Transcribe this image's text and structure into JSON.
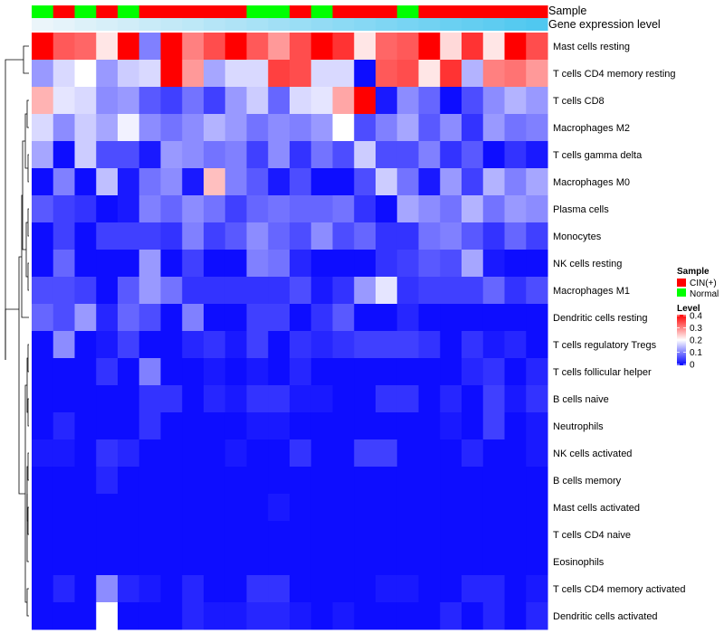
{
  "chart_data": {
    "type": "heatmap",
    "title": "",
    "annotation_titles": {
      "sample": "Sample",
      "expression": "Gene expression level"
    },
    "sample_groups": [
      "N",
      "C",
      "N",
      "C",
      "N",
      "C",
      "C",
      "C",
      "C",
      "C",
      "N",
      "N",
      "C",
      "N",
      "C",
      "C",
      "C",
      "N",
      "C",
      "C",
      "C",
      "C",
      "C",
      "C"
    ],
    "sample_colors": {
      "C": "#ff0000",
      "N": "#00ff00"
    },
    "expression_annotation": [
      0.0,
      0.04,
      0.09,
      0.13,
      0.17,
      0.22,
      0.26,
      0.3,
      0.35,
      0.39,
      0.43,
      0.48,
      0.52,
      0.57,
      0.61,
      0.65,
      0.7,
      0.74,
      0.78,
      0.83,
      0.87,
      0.91,
      0.96,
      1.0
    ],
    "rows": [
      "Mast cells resting",
      "T cells CD4 memory resting",
      "T cells CD8",
      "Macrophages M2",
      "T cells gamma delta",
      "Macrophages M0",
      "Plasma cells",
      "Monocytes",
      "NK cells resting",
      "Macrophages M1",
      "Dendritic cells resting",
      "T cells regulatory  Tregs",
      "T cells follicular helper",
      "B cells naive",
      "Neutrophils",
      "NK cells activated",
      "B cells memory",
      "Mast cells activated",
      "T cells CD4 naive",
      "Eosinophils",
      "T cells CD4 memory activated",
      "Dendritic cells activated"
    ],
    "values": [
      [
        0.4,
        0.33,
        0.32,
        0.22,
        0.4,
        0.1,
        0.4,
        0.3,
        0.34,
        0.4,
        0.33,
        0.28,
        0.34,
        0.4,
        0.36,
        0.22,
        0.32,
        0.33,
        0.4,
        0.23,
        0.36,
        0.22,
        0.4,
        0.34
      ],
      [
        0.12,
        0.17,
        0.2,
        0.12,
        0.16,
        0.17,
        0.4,
        0.28,
        0.13,
        0.17,
        0.17,
        0.35,
        0.34,
        0.17,
        0.17,
        0.01,
        0.33,
        0.34,
        0.22,
        0.36,
        0.14,
        0.3,
        0.31,
        0.28
      ],
      [
        0.26,
        0.18,
        0.17,
        0.11,
        0.12,
        0.07,
        0.05,
        0.09,
        0.05,
        0.12,
        0.16,
        0.08,
        0.17,
        0.18,
        0.27,
        0.4,
        0.02,
        0.11,
        0.08,
        0.01,
        0.06,
        0.11,
        0.14,
        0.12
      ],
      [
        0.17,
        0.11,
        0.16,
        0.13,
        0.19,
        0.11,
        0.09,
        0.11,
        0.14,
        0.12,
        0.09,
        0.11,
        0.1,
        0.12,
        0.2,
        0.06,
        0.1,
        0.13,
        0.07,
        0.11,
        0.04,
        0.12,
        0.09,
        0.1
      ],
      [
        0.13,
        0.01,
        0.16,
        0.06,
        0.06,
        0.02,
        0.12,
        0.11,
        0.09,
        0.1,
        0.05,
        0.11,
        0.04,
        0.09,
        0.06,
        0.16,
        0.06,
        0.06,
        0.1,
        0.04,
        0.07,
        0.01,
        0.04,
        0.02
      ],
      [
        0.01,
        0.1,
        0.01,
        0.15,
        0.02,
        0.09,
        0.11,
        0.02,
        0.25,
        0.1,
        0.07,
        0.02,
        0.06,
        0.01,
        0.01,
        0.06,
        0.16,
        0.09,
        0.02,
        0.12,
        0.05,
        0.14,
        0.1,
        0.13
      ],
      [
        0.07,
        0.05,
        0.04,
        0.01,
        0.02,
        0.1,
        0.08,
        0.11,
        0.09,
        0.05,
        0.08,
        0.09,
        0.08,
        0.08,
        0.09,
        0.04,
        0.01,
        0.13,
        0.11,
        0.09,
        0.14,
        0.09,
        0.12,
        0.11
      ],
      [
        0.01,
        0.05,
        0.01,
        0.05,
        0.05,
        0.05,
        0.04,
        0.1,
        0.05,
        0.07,
        0.11,
        0.08,
        0.06,
        0.11,
        0.06,
        0.08,
        0.04,
        0.04,
        0.09,
        0.1,
        0.07,
        0.04,
        0.08,
        0.05
      ],
      [
        0.01,
        0.08,
        0.01,
        0.01,
        0.01,
        0.12,
        0.01,
        0.05,
        0.01,
        0.01,
        0.1,
        0.09,
        0.03,
        0.01,
        0.01,
        0.01,
        0.04,
        0.05,
        0.07,
        0.06,
        0.13,
        0.02,
        0.01,
        0.01
      ],
      [
        0.06,
        0.06,
        0.05,
        0.01,
        0.07,
        0.12,
        0.09,
        0.04,
        0.04,
        0.04,
        0.04,
        0.04,
        0.06,
        0.02,
        0.04,
        0.12,
        0.18,
        0.04,
        0.05,
        0.05,
        0.05,
        0.08,
        0.04,
        0.06
      ],
      [
        0.08,
        0.06,
        0.12,
        0.03,
        0.08,
        0.06,
        0.01,
        0.1,
        0.01,
        0.01,
        0.05,
        0.05,
        0.01,
        0.04,
        0.07,
        0.01,
        0.01,
        0.03,
        0.01,
        0.01,
        0.01,
        0.01,
        0.01,
        0.01
      ],
      [
        0.01,
        0.11,
        0.01,
        0.02,
        0.05,
        0.01,
        0.01,
        0.03,
        0.04,
        0.02,
        0.05,
        0.01,
        0.04,
        0.03,
        0.04,
        0.05,
        0.05,
        0.05,
        0.04,
        0.01,
        0.04,
        0.02,
        0.03,
        0.01
      ],
      [
        0.01,
        0.01,
        0.01,
        0.04,
        0.01,
        0.1,
        0.01,
        0.01,
        0.02,
        0.01,
        0.02,
        0.01,
        0.03,
        0.01,
        0.01,
        0.01,
        0.01,
        0.01,
        0.01,
        0.01,
        0.03,
        0.04,
        0.01,
        0.03
      ],
      [
        0.01,
        0.01,
        0.01,
        0.01,
        0.01,
        0.04,
        0.04,
        0.01,
        0.03,
        0.02,
        0.04,
        0.04,
        0.02,
        0.02,
        0.01,
        0.01,
        0.04,
        0.04,
        0.01,
        0.03,
        0.01,
        0.05,
        0.02,
        0.04
      ],
      [
        0.01,
        0.03,
        0.01,
        0.01,
        0.01,
        0.04,
        0.01,
        0.01,
        0.01,
        0.01,
        0.02,
        0.02,
        0.01,
        0.01,
        0.01,
        0.01,
        0.01,
        0.01,
        0.01,
        0.02,
        0.01,
        0.05,
        0.01,
        0.02
      ],
      [
        0.02,
        0.02,
        0.01,
        0.04,
        0.03,
        0.01,
        0.01,
        0.01,
        0.01,
        0.02,
        0.01,
        0.01,
        0.04,
        0.01,
        0.01,
        0.05,
        0.05,
        0.01,
        0.01,
        0.01,
        0.03,
        0.01,
        0.01,
        0.02
      ],
      [
        0.01,
        0.01,
        0.01,
        0.03,
        0.01,
        0.01,
        0.01,
        0.01,
        0.01,
        0.01,
        0.01,
        0.01,
        0.01,
        0.01,
        0.01,
        0.01,
        0.01,
        0.01,
        0.01,
        0.01,
        0.01,
        0.01,
        0.01,
        0.01
      ],
      [
        0.01,
        0.01,
        0.01,
        0.01,
        0.01,
        0.01,
        0.01,
        0.01,
        0.01,
        0.01,
        0.01,
        0.02,
        0.01,
        0.01,
        0.01,
        0.01,
        0.01,
        0.01,
        0.01,
        0.01,
        0.01,
        0.01,
        0.01,
        0.01
      ],
      [
        0.01,
        0.01,
        0.01,
        0.01,
        0.01,
        0.01,
        0.01,
        0.01,
        0.01,
        0.01,
        0.01,
        0.01,
        0.01,
        0.01,
        0.01,
        0.01,
        0.01,
        0.01,
        0.01,
        0.01,
        0.01,
        0.01,
        0.01,
        0.01
      ],
      [
        0.01,
        0.01,
        0.01,
        0.01,
        0.01,
        0.01,
        0.01,
        0.01,
        0.01,
        0.01,
        0.01,
        0.01,
        0.01,
        0.01,
        0.01,
        0.01,
        0.01,
        0.01,
        0.01,
        0.01,
        0.01,
        0.01,
        0.01,
        0.01
      ],
      [
        0.01,
        0.03,
        0.01,
        0.11,
        0.03,
        0.02,
        0.01,
        0.03,
        0.01,
        0.01,
        0.04,
        0.04,
        0.01,
        0.01,
        0.01,
        0.01,
        0.02,
        0.02,
        0.01,
        0.01,
        0.03,
        0.03,
        0.01,
        0.02
      ],
      [
        0.01,
        0.01,
        0.01,
        0.2,
        0.01,
        0.01,
        0.01,
        0.03,
        0.02,
        0.02,
        0.03,
        0.03,
        0.02,
        0.01,
        0.02,
        0.01,
        0.01,
        0.01,
        0.01,
        0.03,
        0.01,
        0.03,
        0.01,
        0.03
      ]
    ],
    "color_scale": {
      "min": 0,
      "max": 0.4,
      "low": "#0000ff",
      "mid": "#ffffff",
      "high": "#ff0000",
      "mid_value": 0.2
    },
    "legend": {
      "sample_title": "Sample",
      "sample_entries": [
        {
          "label": "CIN(+)",
          "color": "#ff0000"
        },
        {
          "label": "Normal",
          "color": "#00ff00"
        }
      ],
      "level_title": "Level",
      "level_ticks": [
        "0.4",
        "0.3",
        "0.2",
        "0.1",
        "0"
      ]
    },
    "dendrogram_rows": "hierarchical clustering (left)"
  }
}
